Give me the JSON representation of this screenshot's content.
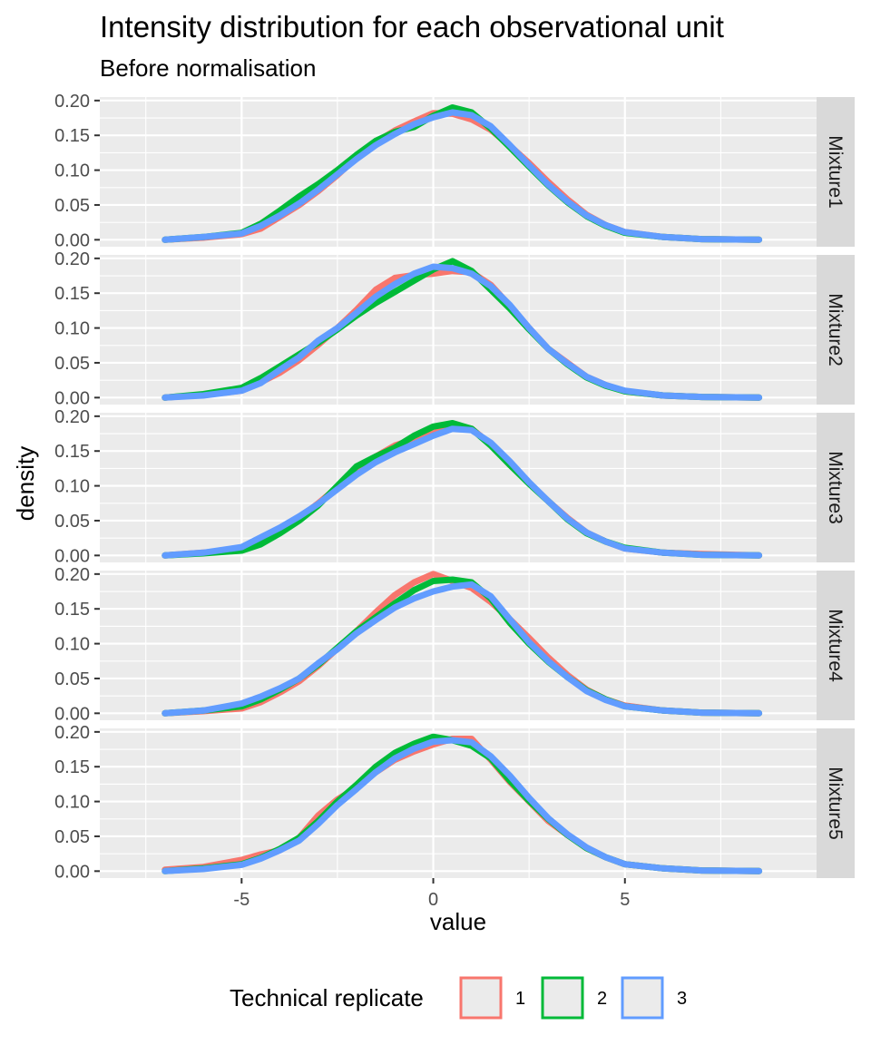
{
  "chart_data": {
    "type": "line",
    "title": "Intensity distribution for each observational unit",
    "subtitle": "Before normalisation",
    "xlabel": "value",
    "ylabel": "density",
    "xlim": [
      -8.7,
      10.0
    ],
    "ylim": [
      -0.01,
      0.205
    ],
    "x_ticks": [
      -5,
      0,
      5
    ],
    "x_tick_labels": [
      "-5",
      "0",
      "5"
    ],
    "y_ticks": [
      0.0,
      0.05,
      0.1,
      0.15,
      0.2
    ],
    "y_tick_labels": [
      "0.00",
      "0.05",
      "0.10",
      "0.15",
      "0.20"
    ],
    "grid": true,
    "legend": {
      "title": "Technical replicate",
      "position": "bottom",
      "labels": [
        "1",
        "2",
        "3"
      ]
    },
    "colors": {
      "1": "#f8766d",
      "2": "#00ba38",
      "3": "#619cff"
    },
    "x": [
      -7,
      -6,
      -5,
      -4.5,
      -4,
      -3.5,
      -3,
      -2.5,
      -2,
      -1.5,
      -1,
      -0.5,
      0,
      0.5,
      1,
      1.5,
      2,
      2.5,
      3,
      3.5,
      4,
      4.5,
      5,
      6,
      7,
      8.5
    ],
    "panels": [
      {
        "label": "Mixture1",
        "series": [
          {
            "name": "1",
            "values": [
              0.0,
              0.003,
              0.008,
              0.016,
              0.033,
              0.05,
              0.07,
              0.093,
              0.118,
              0.14,
              0.157,
              0.17,
              0.182,
              0.181,
              0.173,
              0.158,
              0.135,
              0.11,
              0.083,
              0.058,
              0.036,
              0.021,
              0.011,
              0.004,
              0.001,
              0.0
            ]
          },
          {
            "name": "2",
            "values": [
              0.0,
              0.004,
              0.01,
              0.023,
              0.042,
              0.062,
              0.08,
              0.1,
              0.122,
              0.142,
              0.155,
              0.162,
              0.178,
              0.19,
              0.183,
              0.16,
              0.133,
              0.105,
              0.078,
              0.054,
              0.034,
              0.02,
              0.01,
              0.004,
              0.001,
              0.0
            ]
          },
          {
            "name": "3",
            "values": [
              0.0,
              0.004,
              0.009,
              0.02,
              0.035,
              0.052,
              0.072,
              0.094,
              0.116,
              0.136,
              0.152,
              0.166,
              0.176,
              0.183,
              0.179,
              0.163,
              0.136,
              0.107,
              0.079,
              0.055,
              0.035,
              0.021,
              0.011,
              0.004,
              0.001,
              0.0
            ]
          }
        ]
      },
      {
        "label": "Mixture2",
        "series": [
          {
            "name": "1",
            "values": [
              0.0,
              0.004,
              0.01,
              0.022,
              0.036,
              0.054,
              0.076,
              0.1,
              0.126,
              0.155,
              0.172,
              0.176,
              0.178,
              0.182,
              0.18,
              0.162,
              0.132,
              0.1,
              0.07,
              0.05,
              0.03,
              0.018,
              0.009,
              0.003,
              0.001,
              0.0
            ]
          },
          {
            "name": "2",
            "values": [
              0.0,
              0.005,
              0.014,
              0.028,
              0.045,
              0.062,
              0.079,
              0.098,
              0.118,
              0.136,
              0.152,
              0.168,
              0.184,
              0.196,
              0.182,
              0.155,
              0.128,
              0.098,
              0.07,
              0.048,
              0.029,
              0.017,
              0.009,
              0.003,
              0.001,
              0.0
            ]
          },
          {
            "name": "3",
            "values": [
              0.0,
              0.003,
              0.01,
              0.021,
              0.04,
              0.058,
              0.082,
              0.1,
              0.122,
              0.145,
              0.163,
              0.178,
              0.188,
              0.186,
              0.178,
              0.16,
              0.133,
              0.1,
              0.07,
              0.049,
              0.03,
              0.018,
              0.01,
              0.003,
              0.001,
              0.0
            ]
          }
        ]
      },
      {
        "label": "Mixture3",
        "series": [
          {
            "name": "1",
            "values": [
              0.0,
              0.004,
              0.008,
              0.018,
              0.034,
              0.054,
              0.075,
              0.098,
              0.12,
              0.142,
              0.158,
              0.167,
              0.175,
              0.188,
              0.182,
              0.16,
              0.13,
              0.104,
              0.078,
              0.054,
              0.033,
              0.02,
              0.01,
              0.004,
              0.002,
              0.0
            ]
          },
          {
            "name": "2",
            "values": [
              0.0,
              0.003,
              0.007,
              0.016,
              0.032,
              0.05,
              0.072,
              0.1,
              0.128,
              0.142,
              0.155,
              0.172,
              0.185,
              0.19,
              0.182,
              0.158,
              0.13,
              0.103,
              0.078,
              0.052,
              0.032,
              0.02,
              0.011,
              0.004,
              0.001,
              0.0
            ]
          },
          {
            "name": "3",
            "values": [
              0.0,
              0.004,
              0.012,
              0.026,
              0.04,
              0.056,
              0.074,
              0.095,
              0.116,
              0.134,
              0.148,
              0.16,
              0.172,
              0.182,
              0.18,
              0.162,
              0.135,
              0.105,
              0.078,
              0.053,
              0.033,
              0.02,
              0.01,
              0.004,
              0.001,
              0.0
            ]
          }
        ]
      },
      {
        "label": "Mixture4",
        "series": [
          {
            "name": "1",
            "values": [
              0.0,
              0.003,
              0.007,
              0.016,
              0.03,
              0.046,
              0.068,
              0.093,
              0.118,
              0.145,
              0.17,
              0.188,
              0.2,
              0.19,
              0.18,
              0.16,
              0.135,
              0.108,
              0.08,
              0.055,
              0.034,
              0.02,
              0.011,
              0.004,
              0.001,
              0.0
            ]
          },
          {
            "name": "2",
            "values": [
              0.0,
              0.004,
              0.01,
              0.02,
              0.034,
              0.05,
              0.07,
              0.094,
              0.118,
              0.138,
              0.158,
              0.177,
              0.19,
              0.192,
              0.188,
              0.165,
              0.13,
              0.1,
              0.074,
              0.052,
              0.033,
              0.02,
              0.01,
              0.004,
              0.001,
              0.0
            ]
          },
          {
            "name": "3",
            "values": [
              0.0,
              0.004,
              0.014,
              0.024,
              0.036,
              0.05,
              0.072,
              0.092,
              0.115,
              0.134,
              0.152,
              0.165,
              0.175,
              0.182,
              0.185,
              0.168,
              0.135,
              0.102,
              0.075,
              0.052,
              0.032,
              0.019,
              0.01,
              0.004,
              0.001,
              0.0
            ]
          }
        ]
      },
      {
        "label": "Mixture5",
        "series": [
          {
            "name": "1",
            "values": [
              0.002,
              0.006,
              0.016,
              0.024,
              0.03,
              0.048,
              0.08,
              0.103,
              0.12,
              0.142,
              0.16,
              0.172,
              0.182,
              0.19,
              0.19,
              0.16,
              0.128,
              0.1,
              0.072,
              0.052,
              0.033,
              0.02,
              0.01,
              0.004,
              0.001,
              0.0
            ]
          },
          {
            "name": "2",
            "values": [
              0.0,
              0.004,
              0.01,
              0.019,
              0.032,
              0.048,
              0.072,
              0.1,
              0.124,
              0.15,
              0.17,
              0.183,
              0.193,
              0.188,
              0.18,
              0.162,
              0.13,
              0.101,
              0.075,
              0.052,
              0.033,
              0.02,
              0.01,
              0.004,
              0.001,
              0.0
            ]
          },
          {
            "name": "3",
            "values": [
              0.0,
              0.003,
              0.009,
              0.018,
              0.03,
              0.044,
              0.068,
              0.095,
              0.118,
              0.142,
              0.162,
              0.176,
              0.186,
              0.188,
              0.185,
              0.165,
              0.137,
              0.105,
              0.076,
              0.053,
              0.034,
              0.02,
              0.01,
              0.004,
              0.001,
              0.0
            ]
          }
        ]
      }
    ]
  }
}
